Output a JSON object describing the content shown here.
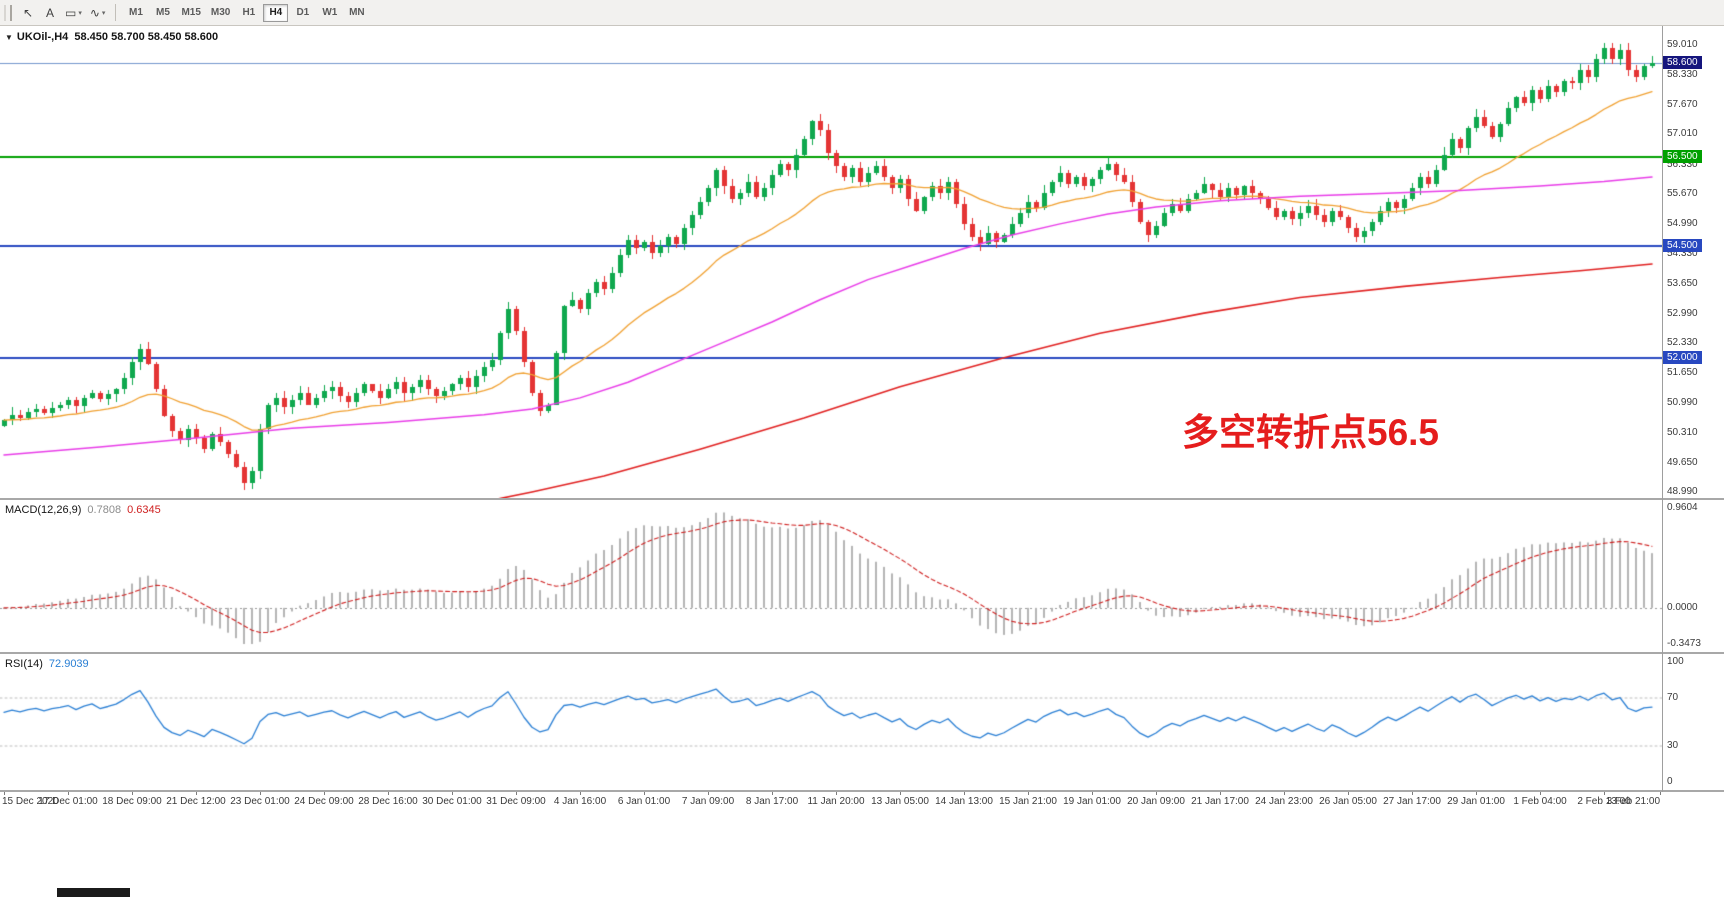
{
  "toolbar": {
    "tools": [
      {
        "name": "cursor-icon",
        "glyph": "↖",
        "dropdown": false
      },
      {
        "name": "text-label-icon",
        "glyph": "A",
        "dropdown": false
      },
      {
        "name": "shapes-icon",
        "glyph": "▭",
        "dropdown": true
      },
      {
        "name": "draw-lines-icon",
        "glyph": "∿",
        "dropdown": true
      }
    ],
    "timeframes": [
      "M1",
      "M5",
      "M15",
      "M30",
      "H1",
      "H4",
      "D1",
      "W1",
      "MN"
    ],
    "active_timeframe": "H4"
  },
  "chart": {
    "collapse_glyph": "▼",
    "symbol": "UKOil-,H4",
    "ohlc": "58.450 58.700 58.450 58.600"
  },
  "annotation": {
    "text": "多空转折点56.5",
    "color": "#e51d1d"
  },
  "price_axis": {
    "labels": [
      "59.010",
      "58.330",
      "57.670",
      "57.010",
      "56.330",
      "55.670",
      "54.990",
      "54.330",
      "53.650",
      "52.990",
      "52.330",
      "51.650",
      "50.990",
      "50.310",
      "49.650",
      "48.990"
    ],
    "markers": [
      {
        "value": "58.600",
        "price": 58.6,
        "bg": "#15157d"
      },
      {
        "value": "56.500",
        "price": 56.5,
        "bg": "#00a000"
      },
      {
        "value": "54.500",
        "price": 54.5,
        "bg": "#2848c0"
      },
      {
        "value": "52.000",
        "price": 52.0,
        "bg": "#2848c0"
      }
    ]
  },
  "hlines": [
    {
      "price": 58.6,
      "color": "#7296cc",
      "width": 1
    },
    {
      "price": 56.5,
      "color": "#00a000",
      "width": 2
    },
    {
      "price": 54.5,
      "color": "#2848c0",
      "width": 2
    },
    {
      "price": 52.0,
      "color": "#2848c0",
      "width": 2
    }
  ],
  "macd_panel": {
    "name": "MACD(12,26,9)",
    "value": "0.7808",
    "signal_value": "0.6345",
    "max": 0.9604,
    "min": -0.3473,
    "axis": [
      {
        "v": 0.9604,
        "label": "0.9604"
      },
      {
        "v": 0.0,
        "label": "0.0000"
      },
      {
        "v": -0.3473,
        "label": "-0.3473"
      }
    ],
    "bar_color": "#b4b4b4",
    "signal_color": "#cf1f1f"
  },
  "rsi_panel": {
    "name": "RSI(14)",
    "value": "72.9039",
    "axis": [
      {
        "v": 100,
        "label": "100"
      },
      {
        "v": 70,
        "label": "70"
      },
      {
        "v": 30,
        "label": "30"
      },
      {
        "v": 0,
        "label": "0"
      }
    ],
    "levels": [
      70,
      30
    ],
    "line_color": "#2a7fd4"
  },
  "time_axis": [
    "15 Dec 2020",
    "17 Dec 01:00",
    "18 Dec 09:00",
    "21 Dec 12:00",
    "23 Dec 01:00",
    "24 Dec 09:00",
    "28 Dec 16:00",
    "30 Dec 01:00",
    "31 Dec 09:00",
    "4 Jan 16:00",
    "6 Jan 01:00",
    "7 Jan 09:00",
    "8 Jan 17:00",
    "11 Jan 20:00",
    "13 Jan 05:00",
    "14 Jan 13:00",
    "15 Jan 21:00",
    "19 Jan 01:00",
    "20 Jan 09:00",
    "21 Jan 17:00",
    "24 Jan 23:00",
    "26 Jan 05:00",
    "27 Jan 17:00",
    "29 Jan 01:00",
    "1 Feb 04:00",
    "2 Feb 13:00",
    "3 Feb 21:00"
  ],
  "chart_data": {
    "type": "candlestick",
    "symbol": "UKOil-",
    "timeframe": "H4",
    "current_bar": {
      "open": 58.45,
      "high": 58.7,
      "low": 58.45,
      "close": 58.6
    },
    "price_axis_range": [
      48.99,
      59.01
    ],
    "up_color": "#0fa84e",
    "down_color": "#e43434",
    "closes": [
      50.6,
      50.72,
      50.65,
      50.78,
      50.85,
      50.76,
      50.88,
      50.95,
      51.05,
      50.92,
      51.1,
      51.22,
      51.08,
      51.18,
      51.3,
      51.55,
      51.9,
      52.2,
      51.85,
      51.3,
      50.7,
      50.35,
      50.15,
      50.4,
      50.2,
      49.95,
      50.3,
      50.1,
      49.85,
      49.55,
      49.2,
      49.45,
      50.4,
      50.95,
      51.1,
      50.9,
      51.05,
      51.2,
      50.95,
      51.1,
      51.25,
      51.35,
      51.15,
      51.0,
      51.2,
      51.4,
      51.25,
      51.1,
      51.3,
      51.45,
      51.2,
      51.35,
      51.5,
      51.3,
      51.15,
      51.25,
      51.4,
      51.55,
      51.35,
      51.6,
      51.8,
      51.95,
      52.55,
      53.1,
      52.6,
      51.9,
      51.2,
      50.8,
      50.95,
      52.1,
      53.15,
      53.3,
      53.1,
      53.45,
      53.7,
      53.55,
      53.9,
      54.3,
      54.65,
      54.45,
      54.6,
      54.35,
      54.5,
      54.7,
      54.55,
      54.9,
      55.2,
      55.5,
      55.8,
      56.2,
      55.85,
      55.55,
      55.7,
      55.95,
      55.6,
      55.8,
      56.1,
      56.35,
      56.2,
      56.55,
      56.9,
      57.3,
      57.1,
      56.6,
      56.3,
      56.05,
      56.25,
      55.95,
      56.15,
      56.3,
      56.05,
      55.8,
      56.0,
      55.55,
      55.3,
      55.6,
      55.85,
      55.7,
      55.95,
      55.45,
      55.0,
      54.7,
      54.55,
      54.8,
      54.6,
      54.75,
      55.0,
      55.25,
      55.5,
      55.35,
      55.7,
      55.95,
      56.15,
      55.9,
      56.05,
      55.85,
      56.0,
      56.2,
      56.35,
      56.1,
      55.95,
      55.5,
      55.05,
      54.75,
      54.95,
      55.25,
      55.45,
      55.3,
      55.55,
      55.7,
      55.9,
      55.75,
      55.6,
      55.8,
      55.65,
      55.85,
      55.7,
      55.55,
      55.35,
      55.15,
      55.3,
      55.1,
      55.25,
      55.4,
      55.2,
      55.05,
      55.3,
      55.15,
      54.9,
      54.7,
      54.85,
      55.05,
      55.3,
      55.5,
      55.35,
      55.55,
      55.8,
      56.05,
      55.9,
      56.2,
      56.55,
      56.9,
      56.7,
      57.15,
      57.4,
      57.2,
      56.95,
      57.25,
      57.6,
      57.85,
      57.7,
      58.0,
      57.8,
      58.1,
      57.95,
      58.2,
      58.15,
      58.45,
      58.3,
      58.7,
      58.95,
      58.7,
      58.9,
      58.45,
      58.3,
      58.55,
      58.6
    ],
    "ma_fast": {
      "color": "#f0a030",
      "period": 24
    },
    "ma_mid": {
      "color": "#e83ce8",
      "anchors": [
        [
          0,
          49.82
        ],
        [
          12,
          50.0
        ],
        [
          24,
          50.2
        ],
        [
          36,
          50.42
        ],
        [
          48,
          50.55
        ],
        [
          60,
          50.72
        ],
        [
          66,
          50.85
        ],
        [
          72,
          51.1
        ],
        [
          78,
          51.45
        ],
        [
          84,
          51.9
        ],
        [
          90,
          52.35
        ],
        [
          96,
          52.8
        ],
        [
          102,
          53.3
        ],
        [
          108,
          53.75
        ],
        [
          114,
          54.1
        ],
        [
          120,
          54.45
        ],
        [
          126,
          54.75
        ],
        [
          132,
          55.0
        ],
        [
          138,
          55.22
        ],
        [
          144,
          55.38
        ],
        [
          152,
          55.52
        ],
        [
          162,
          55.62
        ],
        [
          172,
          55.68
        ],
        [
          182,
          55.75
        ],
        [
          192,
          55.85
        ],
        [
          200,
          55.95
        ],
        [
          206,
          56.05
        ]
      ]
    },
    "ma_slow": {
      "color": "#e02020",
      "anchors": [
        [
          58,
          48.7
        ],
        [
          66,
          48.99
        ],
        [
          75,
          49.35
        ],
        [
          87,
          49.95
        ],
        [
          100,
          50.65
        ],
        [
          112,
          51.35
        ],
        [
          125,
          52.0
        ],
        [
          137,
          52.55
        ],
        [
          150,
          53.0
        ],
        [
          162,
          53.35
        ],
        [
          175,
          53.6
        ],
        [
          187,
          53.8
        ],
        [
          197,
          53.95
        ],
        [
          206,
          54.1
        ]
      ]
    },
    "indicators": {
      "macd": {
        "fast": 12,
        "slow": 26,
        "signal": 9
      },
      "rsi": {
        "period": 14
      }
    }
  }
}
